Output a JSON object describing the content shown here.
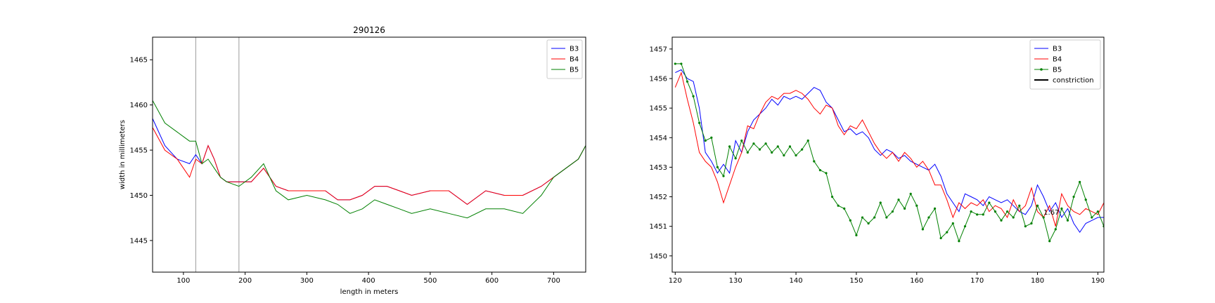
{
  "chart_data": [
    {
      "type": "line",
      "title": "290126",
      "xlabel": "length in meters",
      "ylabel": "width in millimeters",
      "xlim": [
        50,
        752
      ],
      "ylim": [
        1441.5,
        1467.5
      ],
      "xticks": [
        100,
        200,
        300,
        400,
        500,
        600,
        700
      ],
      "yticks": [
        1445,
        1450,
        1455,
        1460,
        1465
      ],
      "vlines": [
        120,
        190
      ],
      "legend": "top-right",
      "series": [
        {
          "name": "B3",
          "color": "#0000ff",
          "x": [
            50,
            70,
            90,
            110,
            120,
            130,
            140,
            150,
            160,
            170,
            190,
            210,
            230,
            250,
            270,
            300,
            330,
            350,
            370,
            390,
            410,
            430,
            450,
            470,
            500,
            530,
            560,
            590,
            620,
            650,
            680,
            700,
            720,
            740,
            752
          ],
          "y": [
            1458.5,
            1455.5,
            1454.0,
            1453.5,
            1454.5,
            1453.5,
            1455.5,
            1454.0,
            1452.0,
            1451.5,
            1451.5,
            1451.5,
            1453.0,
            1451.0,
            1450.5,
            1450.5,
            1450.5,
            1449.5,
            1449.5,
            1450.0,
            1451.0,
            1451.0,
            1450.5,
            1450.0,
            1450.5,
            1450.5,
            1449.0,
            1450.5,
            1450.0,
            1450.0,
            1451.0,
            1452.0,
            1453.0,
            1454.0,
            1455.5
          ]
        },
        {
          "name": "B4",
          "color": "#ff0000",
          "x": [
            50,
            70,
            90,
            110,
            120,
            130,
            140,
            150,
            160,
            170,
            190,
            210,
            230,
            250,
            270,
            300,
            330,
            350,
            370,
            390,
            410,
            430,
            450,
            470,
            500,
            530,
            560,
            590,
            620,
            650,
            680,
            700,
            720,
            740,
            752
          ],
          "y": [
            1457.5,
            1455.0,
            1454.0,
            1452.0,
            1454.0,
            1453.5,
            1455.5,
            1454.0,
            1452.0,
            1451.5,
            1451.5,
            1451.5,
            1453.0,
            1451.0,
            1450.5,
            1450.5,
            1450.5,
            1449.5,
            1449.5,
            1450.0,
            1451.0,
            1451.0,
            1450.5,
            1450.0,
            1450.5,
            1450.5,
            1449.0,
            1450.5,
            1450.0,
            1450.0,
            1451.0,
            1452.0,
            1453.0,
            1454.0,
            1455.5
          ]
        },
        {
          "name": "B5",
          "color": "#008000",
          "x": [
            50,
            70,
            90,
            110,
            120,
            130,
            140,
            150,
            160,
            170,
            190,
            210,
            230,
            250,
            270,
            300,
            330,
            350,
            370,
            390,
            410,
            430,
            450,
            470,
            500,
            530,
            560,
            590,
            620,
            650,
            680,
            700,
            720,
            740,
            752
          ],
          "y": [
            1460.5,
            1458.0,
            1457.0,
            1456.0,
            1456.0,
            1453.5,
            1454.0,
            1453.0,
            1452.0,
            1451.5,
            1451.0,
            1452.0,
            1453.5,
            1450.5,
            1449.5,
            1450.0,
            1449.5,
            1449.0,
            1448.0,
            1448.5,
            1449.5,
            1449.0,
            1448.5,
            1448.0,
            1448.5,
            1448.0,
            1447.5,
            1448.5,
            1448.5,
            1448.0,
            1450.0,
            1452.0,
            1453.0,
            1454.0,
            1455.5
          ]
        }
      ]
    },
    {
      "type": "line",
      "title": "",
      "xlabel": "",
      "ylabel": "",
      "xlim": [
        119.5,
        191
      ],
      "ylim": [
        1449.45,
        1457.4
      ],
      "xticks": [
        120,
        130,
        140,
        150,
        160,
        170,
        180,
        190
      ],
      "yticks": [
        1450,
        1451,
        1452,
        1453,
        1454,
        1455,
        1456,
        1457
      ],
      "legend": "top-right",
      "annotation": {
        "text": "1.67",
        "x": 182.3,
        "y": 1451.4
      },
      "series": [
        {
          "name": "B3",
          "color": "#0000ff",
          "marker": false,
          "x": [
            120,
            121,
            122,
            123,
            124,
            125,
            126,
            127,
            128,
            129,
            130,
            131,
            132,
            133,
            134,
            135,
            136,
            137,
            138,
            139,
            140,
            141,
            142,
            143,
            144,
            145,
            146,
            147,
            148,
            149,
            150,
            151,
            152,
            153,
            154,
            155,
            156,
            157,
            158,
            159,
            160,
            161,
            162,
            163,
            164,
            165,
            166,
            167,
            168,
            169,
            170,
            171,
            172,
            173,
            174,
            175,
            176,
            177,
            178,
            179,
            180,
            181,
            182,
            183,
            184,
            185,
            186,
            187,
            188,
            189,
            190,
            191
          ],
          "y": [
            1456.2,
            1456.3,
            1456.0,
            1455.9,
            1455.0,
            1453.5,
            1453.2,
            1452.8,
            1453.1,
            1452.8,
            1453.9,
            1453.5,
            1454.2,
            1454.6,
            1454.8,
            1455.0,
            1455.3,
            1455.1,
            1455.4,
            1455.3,
            1455.4,
            1455.3,
            1455.5,
            1455.7,
            1455.6,
            1455.2,
            1455.0,
            1454.6,
            1454.2,
            1454.3,
            1454.1,
            1454.2,
            1454.0,
            1453.6,
            1453.4,
            1453.6,
            1453.5,
            1453.3,
            1453.4,
            1453.2,
            1453.1,
            1453.0,
            1452.9,
            1453.1,
            1452.7,
            1452.1,
            1451.8,
            1451.5,
            1452.1,
            1452.0,
            1451.9,
            1451.7,
            1452.0,
            1451.9,
            1451.8,
            1451.9,
            1451.7,
            1451.5,
            1451.4,
            1451.7,
            1452.4,
            1452.0,
            1451.5,
            1451.8,
            1451.3,
            1451.6,
            1451.1,
            1450.8,
            1451.1,
            1451.2,
            1451.3,
            1451.3
          ]
        },
        {
          "name": "B4",
          "color": "#ff0000",
          "marker": false,
          "x": [
            120,
            121,
            122,
            123,
            124,
            125,
            126,
            127,
            128,
            129,
            130,
            131,
            132,
            133,
            134,
            135,
            136,
            137,
            138,
            139,
            140,
            141,
            142,
            143,
            144,
            145,
            146,
            147,
            148,
            149,
            150,
            151,
            152,
            153,
            154,
            155,
            156,
            157,
            158,
            159,
            160,
            161,
            162,
            163,
            164,
            165,
            166,
            167,
            168,
            169,
            170,
            171,
            172,
            173,
            174,
            175,
            176,
            177,
            178,
            179,
            180,
            181,
            182,
            183,
            184,
            185,
            186,
            187,
            188,
            189,
            190,
            191
          ],
          "y": [
            1455.7,
            1456.2,
            1455.3,
            1454.5,
            1453.5,
            1453.2,
            1453.0,
            1452.5,
            1451.8,
            1452.4,
            1453.0,
            1453.5,
            1454.4,
            1454.3,
            1454.8,
            1455.2,
            1455.4,
            1455.3,
            1455.5,
            1455.5,
            1455.6,
            1455.5,
            1455.3,
            1455.0,
            1454.8,
            1455.1,
            1455.0,
            1454.4,
            1454.1,
            1454.4,
            1454.3,
            1454.6,
            1454.2,
            1453.8,
            1453.5,
            1453.3,
            1453.5,
            1453.2,
            1453.5,
            1453.3,
            1453.0,
            1453.2,
            1452.9,
            1452.4,
            1452.4,
            1451.9,
            1451.3,
            1451.8,
            1451.6,
            1451.8,
            1451.7,
            1451.9,
            1451.5,
            1451.7,
            1451.6,
            1451.3,
            1451.9,
            1451.5,
            1451.7,
            1452.3,
            1451.5,
            1451.3,
            1451.7,
            1451.0,
            1452.1,
            1451.7,
            1451.5,
            1451.4,
            1451.6,
            1451.5,
            1451.4,
            1451.8
          ]
        },
        {
          "name": "B5",
          "color": "#008000",
          "marker": true,
          "x": [
            120,
            121,
            122,
            123,
            124,
            125,
            126,
            127,
            128,
            129,
            130,
            131,
            132,
            133,
            134,
            135,
            136,
            137,
            138,
            139,
            140,
            141,
            142,
            143,
            144,
            145,
            146,
            147,
            148,
            149,
            150,
            151,
            152,
            153,
            154,
            155,
            156,
            157,
            158,
            159,
            160,
            161,
            162,
            163,
            164,
            165,
            166,
            167,
            168,
            169,
            170,
            171,
            172,
            173,
            174,
            175,
            176,
            177,
            178,
            179,
            180,
            181,
            182,
            183,
            184,
            185,
            186,
            187,
            188,
            189,
            190,
            191
          ],
          "y": [
            1456.5,
            1456.5,
            1455.9,
            1455.4,
            1454.5,
            1453.9,
            1454.0,
            1453.0,
            1452.7,
            1453.7,
            1453.3,
            1453.9,
            1453.5,
            1453.8,
            1453.6,
            1453.8,
            1453.5,
            1453.7,
            1453.4,
            1453.7,
            1453.4,
            1453.6,
            1453.9,
            1453.2,
            1452.9,
            1452.8,
            1452.0,
            1451.7,
            1451.6,
            1451.2,
            1450.7,
            1451.3,
            1451.1,
            1451.3,
            1451.8,
            1451.3,
            1451.5,
            1451.9,
            1451.6,
            1452.1,
            1451.7,
            1450.9,
            1451.3,
            1451.6,
            1450.6,
            1450.8,
            1451.1,
            1450.5,
            1451.0,
            1451.5,
            1451.4,
            1451.4,
            1451.8,
            1451.5,
            1451.2,
            1451.5,
            1451.3,
            1451.7,
            1451.0,
            1451.1,
            1451.7,
            1451.3,
            1450.5,
            1450.9,
            1451.6,
            1451.2,
            1452.0,
            1452.5,
            1451.9,
            1451.3,
            1451.5,
            1451.0
          ]
        },
        {
          "name": "constriction",
          "color": "#000000",
          "marker": false,
          "x": [],
          "y": []
        }
      ]
    }
  ]
}
